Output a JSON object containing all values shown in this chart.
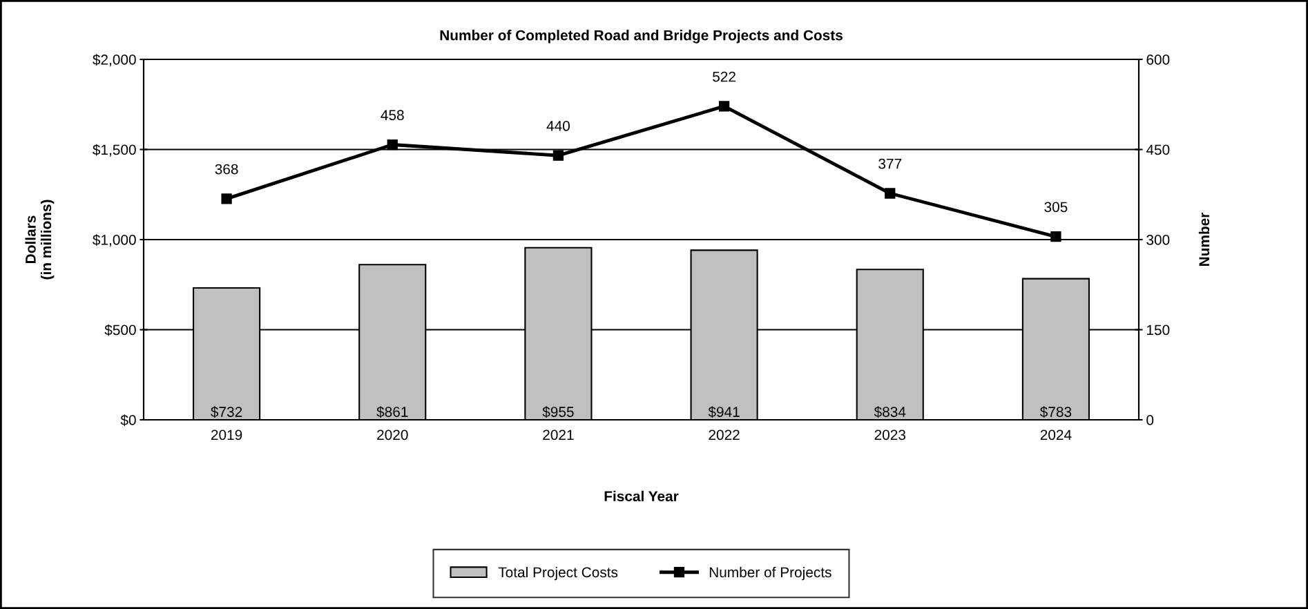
{
  "chart_data": {
    "type": "bar",
    "title": "Number of Completed Road and Bridge Projects and Costs",
    "xlabel": "Fiscal Year",
    "ylabel": "Dollars\n(in millions)",
    "y2label": "Number",
    "categories": [
      "2019",
      "2020",
      "2021",
      "2022",
      "2023",
      "2024"
    ],
    "series": [
      {
        "name": "Total Project Costs",
        "color": "#c0c0c0",
        "values": [
          732,
          861,
          955,
          941,
          834,
          783
        ],
        "value_labels": [
          "$732",
          "$861",
          "$955",
          "$941",
          "$834",
          "$783"
        ]
      },
      {
        "name": "Number of Projects",
        "type": "line",
        "axis": "y2",
        "color": "#000000",
        "values": [
          368,
          458,
          440,
          522,
          377,
          305
        ],
        "value_labels": [
          "368",
          "458",
          "440",
          "522",
          "377",
          "305"
        ],
        "marker": "square",
        "line_style": "solid"
      }
    ],
    "ylim": [
      0,
      2000
    ],
    "yticks": [
      {
        "value": 0,
        "label": "$0"
      },
      {
        "value": 500,
        "label": "$500"
      },
      {
        "value": 1000,
        "label": "$1,000"
      },
      {
        "value": 1500,
        "label": "$1,500"
      },
      {
        "value": 2000,
        "label": "$2,000"
      }
    ],
    "y2lim": [
      0,
      600
    ],
    "y2ticks": [
      0,
      150,
      300,
      450,
      600
    ],
    "grid": "y",
    "legend": "bottom"
  }
}
